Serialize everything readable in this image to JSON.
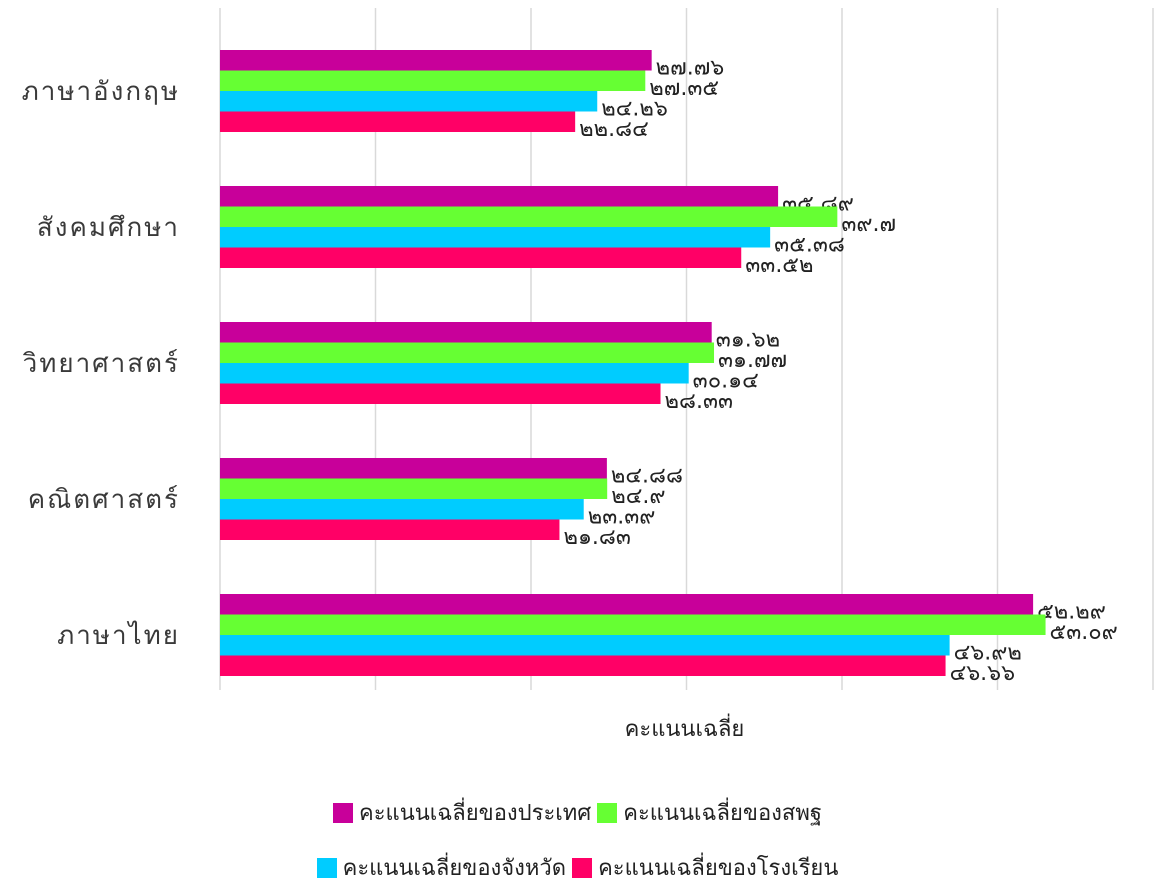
{
  "chart_data": {
    "type": "bar",
    "orientation": "horizontal",
    "categories": [
      "ภาษาอังกฤษ",
      "สังคมศึกษา",
      "วิทยาศาสตร์",
      "คณิตศาสตร์",
      "ภาษาไทย"
    ],
    "series": [
      {
        "name": "คะแนนเฉลี่ยของประเทศ",
        "color": "#c8009a",
        "values": [
          27.76,
          35.89,
          31.62,
          24.88,
          52.29
        ],
        "labels": [
          "๒๗.๗๖",
          "๓๕.๘๙",
          "๓๑.๖๒",
          "๒๔.๘๘",
          "๕๒.๒๙"
        ]
      },
      {
        "name": "คะแนนเฉลี่ยของสพฐ",
        "color": "#66ff33",
        "values": [
          27.35,
          39.7,
          31.77,
          24.9,
          53.09
        ],
        "labels": [
          "๒๗.๓๕",
          "๓๙.๗",
          "๓๑.๗๗",
          "๒๔.๙",
          "๕๓.๐๙"
        ]
      },
      {
        "name": "คะแนนเฉลี่ยของจังหวัด",
        "color": "#00ccff",
        "values": [
          24.26,
          35.38,
          30.14,
          23.39,
          46.92
        ],
        "labels": [
          "๒๔.๒๖",
          "๓๕.๓๘",
          "๓๐.๑๔",
          "๒๓.๓๙",
          "๔๖.๙๒"
        ]
      },
      {
        "name": "คะแนนเฉลี่ยของโรงเรียน",
        "color": "#ff0066",
        "values": [
          22.84,
          33.52,
          28.33,
          21.83,
          46.66
        ],
        "labels": [
          "๒๒.๘๔",
          "๓๓.๕๒",
          "๒๘.๓๓",
          "๒๑.๘๓",
          "๔๖.๖๖"
        ]
      }
    ],
    "xlabel": "คะแนนเฉลี่ย",
    "xlim": [
      0,
      60
    ],
    "grid": true,
    "legend_position": "bottom"
  }
}
